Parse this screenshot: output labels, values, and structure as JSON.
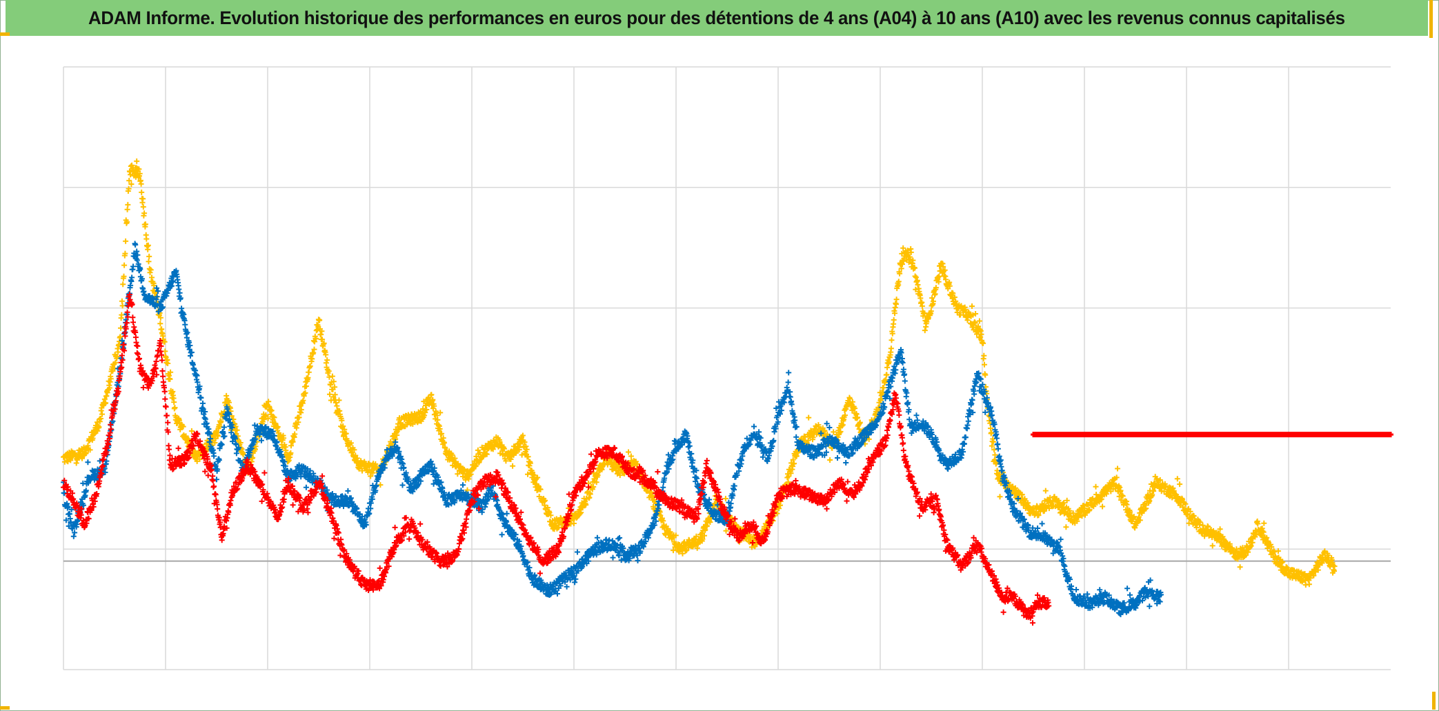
{
  "title": "ADAM Informe. Evolution historique des performances en euros pour des détentions de 4 ans (A04) à 10 ans (A10) avec les revenus connus capitalisés",
  "colors": {
    "title_background": "#84cc7a",
    "accent_corners": "#f0b400",
    "grid": "#d9d9d9",
    "zero_line": "#a6a6a6"
  },
  "chart_data": {
    "type": "scatter",
    "marker": "plus",
    "xlim": [
      0,
      13
    ],
    "ylim": [
      -0.9,
      4.1
    ],
    "x_gridlines": [
      1,
      2,
      3,
      4,
      5,
      6,
      7,
      8,
      9,
      10,
      11,
      12
    ],
    "y_gridlines": [
      0.1,
      2.1,
      3.1
    ],
    "zero_line": 0,
    "grid": true,
    "tick_labels_visible": false,
    "series": [
      {
        "color": "#ffc000",
        "points": [
          [
            0.0,
            0.85
          ],
          [
            0.2,
            0.9
          ],
          [
            0.35,
            1.15
          ],
          [
            0.55,
            1.8
          ],
          [
            0.65,
            3.25
          ],
          [
            0.75,
            3.2
          ],
          [
            0.85,
            2.4
          ],
          [
            0.95,
            2.0
          ],
          [
            1.1,
            1.2
          ],
          [
            1.3,
            0.85
          ],
          [
            1.5,
            1.05
          ],
          [
            1.6,
            1.35
          ],
          [
            1.8,
            0.75
          ],
          [
            2.0,
            1.3
          ],
          [
            2.2,
            0.85
          ],
          [
            2.35,
            1.35
          ],
          [
            2.5,
            2.0
          ],
          [
            2.6,
            1.55
          ],
          [
            2.75,
            1.05
          ],
          [
            2.9,
            0.8
          ],
          [
            3.1,
            0.75
          ],
          [
            3.3,
            1.15
          ],
          [
            3.5,
            1.2
          ],
          [
            3.6,
            1.35
          ],
          [
            3.75,
            0.9
          ],
          [
            3.95,
            0.7
          ],
          [
            4.1,
            0.9
          ],
          [
            4.25,
            1.0
          ],
          [
            4.35,
            0.85
          ],
          [
            4.5,
            1.0
          ],
          [
            4.6,
            0.7
          ],
          [
            4.8,
            0.3
          ],
          [
            5.0,
            0.35
          ],
          [
            5.15,
            0.55
          ],
          [
            5.3,
            0.85
          ],
          [
            5.45,
            0.75
          ],
          [
            5.6,
            0.8
          ],
          [
            5.75,
            0.55
          ],
          [
            5.9,
            0.25
          ],
          [
            6.05,
            0.1
          ],
          [
            6.25,
            0.2
          ],
          [
            6.4,
            0.5
          ],
          [
            6.6,
            0.25
          ],
          [
            6.8,
            0.15
          ],
          [
            7.0,
            0.45
          ],
          [
            7.2,
            0.95
          ],
          [
            7.4,
            1.1
          ],
          [
            7.55,
            0.95
          ],
          [
            7.7,
            1.35
          ],
          [
            7.85,
            1.0
          ],
          [
            8.0,
            1.3
          ],
          [
            8.1,
            1.75
          ],
          [
            8.2,
            2.5
          ],
          [
            8.3,
            2.55
          ],
          [
            8.45,
            1.95
          ],
          [
            8.6,
            2.45
          ],
          [
            8.75,
            2.1
          ],
          [
            8.85,
            2.05
          ],
          [
            9.0,
            1.85
          ],
          [
            9.05,
            1.3
          ],
          [
            9.15,
            0.7
          ],
          [
            9.3,
            0.6
          ],
          [
            9.5,
            0.4
          ],
          [
            9.7,
            0.5
          ],
          [
            9.9,
            0.35
          ],
          [
            10.1,
            0.5
          ],
          [
            10.3,
            0.65
          ],
          [
            10.5,
            0.3
          ],
          [
            10.7,
            0.65
          ],
          [
            10.9,
            0.55
          ],
          [
            11.1,
            0.3
          ],
          [
            11.3,
            0.2
          ],
          [
            11.5,
            0.05
          ],
          [
            11.6,
            0.1
          ],
          [
            11.7,
            0.3
          ],
          [
            11.85,
            0.05
          ],
          [
            12.0,
            -0.1
          ],
          [
            12.2,
            -0.15
          ],
          [
            12.35,
            0.05
          ],
          [
            12.45,
            -0.05
          ]
        ]
      },
      {
        "color": "#0070c0",
        "points": [
          [
            0.0,
            0.55
          ],
          [
            0.1,
            0.25
          ],
          [
            0.25,
            0.7
          ],
          [
            0.4,
            0.75
          ],
          [
            0.55,
            1.55
          ],
          [
            0.7,
            2.6
          ],
          [
            0.8,
            2.2
          ],
          [
            0.95,
            2.1
          ],
          [
            1.0,
            2.2
          ],
          [
            1.1,
            2.4
          ],
          [
            1.2,
            1.9
          ],
          [
            1.35,
            1.35
          ],
          [
            1.5,
            0.75
          ],
          [
            1.6,
            1.25
          ],
          [
            1.75,
            0.75
          ],
          [
            1.9,
            1.1
          ],
          [
            2.05,
            1.05
          ],
          [
            2.2,
            0.7
          ],
          [
            2.35,
            0.75
          ],
          [
            2.5,
            0.65
          ],
          [
            2.65,
            0.5
          ],
          [
            2.8,
            0.5
          ],
          [
            2.95,
            0.3
          ],
          [
            3.1,
            0.75
          ],
          [
            3.25,
            0.95
          ],
          [
            3.4,
            0.6
          ],
          [
            3.6,
            0.8
          ],
          [
            3.75,
            0.5
          ],
          [
            3.9,
            0.55
          ],
          [
            4.1,
            0.45
          ],
          [
            4.2,
            0.6
          ],
          [
            4.3,
            0.35
          ],
          [
            4.45,
            0.15
          ],
          [
            4.6,
            -0.15
          ],
          [
            4.75,
            -0.25
          ],
          [
            4.9,
            -0.15
          ],
          [
            5.05,
            -0.05
          ],
          [
            5.2,
            0.1
          ],
          [
            5.35,
            0.15
          ],
          [
            5.5,
            0.05
          ],
          [
            5.65,
            0.1
          ],
          [
            5.8,
            0.35
          ],
          [
            5.9,
            0.75
          ],
          [
            6.0,
            0.95
          ],
          [
            6.1,
            1.05
          ],
          [
            6.2,
            0.65
          ],
          [
            6.35,
            0.4
          ],
          [
            6.5,
            0.35
          ],
          [
            6.6,
            0.75
          ],
          [
            6.7,
            1.0
          ],
          [
            6.8,
            1.05
          ],
          [
            6.9,
            0.85
          ],
          [
            7.0,
            1.2
          ],
          [
            7.1,
            1.45
          ],
          [
            7.2,
            0.95
          ],
          [
            7.35,
            0.9
          ],
          [
            7.5,
            1.0
          ],
          [
            7.7,
            0.9
          ],
          [
            7.85,
            1.05
          ],
          [
            8.0,
            1.2
          ],
          [
            8.2,
            1.75
          ],
          [
            8.3,
            1.1
          ],
          [
            8.4,
            1.15
          ],
          [
            8.5,
            1.05
          ],
          [
            8.65,
            0.8
          ],
          [
            8.8,
            0.9
          ],
          [
            8.95,
            1.55
          ],
          [
            9.1,
            1.2
          ],
          [
            9.2,
            0.7
          ],
          [
            9.3,
            0.45
          ],
          [
            9.45,
            0.25
          ],
          [
            9.6,
            0.2
          ],
          [
            9.75,
            0.1
          ],
          [
            9.9,
            -0.3
          ],
          [
            10.05,
            -0.35
          ],
          [
            10.2,
            -0.3
          ],
          [
            10.35,
            -0.4
          ],
          [
            10.5,
            -0.35
          ],
          [
            10.6,
            -0.25
          ],
          [
            10.75,
            -0.3
          ]
        ]
      },
      {
        "color": "#ff0000",
        "points": [
          [
            0.0,
            0.65
          ],
          [
            0.1,
            0.5
          ],
          [
            0.2,
            0.3
          ],
          [
            0.3,
            0.5
          ],
          [
            0.45,
            1.05
          ],
          [
            0.55,
            1.5
          ],
          [
            0.65,
            2.2
          ],
          [
            0.75,
            1.6
          ],
          [
            0.85,
            1.45
          ],
          [
            0.95,
            1.8
          ],
          [
            1.05,
            0.8
          ],
          [
            1.2,
            0.85
          ],
          [
            1.3,
            1.05
          ],
          [
            1.45,
            0.75
          ],
          [
            1.55,
            0.2
          ],
          [
            1.65,
            0.55
          ],
          [
            1.8,
            0.8
          ],
          [
            1.95,
            0.6
          ],
          [
            2.1,
            0.35
          ],
          [
            2.2,
            0.65
          ],
          [
            2.35,
            0.45
          ],
          [
            2.5,
            0.65
          ],
          [
            2.6,
            0.45
          ],
          [
            2.75,
            0.05
          ],
          [
            2.95,
            -0.2
          ],
          [
            3.1,
            -0.2
          ],
          [
            3.25,
            0.15
          ],
          [
            3.4,
            0.3
          ],
          [
            3.55,
            0.1
          ],
          [
            3.7,
            0.0
          ],
          [
            3.85,
            0.05
          ],
          [
            4.0,
            0.5
          ],
          [
            4.1,
            0.65
          ],
          [
            4.25,
            0.7
          ],
          [
            4.4,
            0.45
          ],
          [
            4.55,
            0.2
          ],
          [
            4.7,
            0.0
          ],
          [
            4.85,
            0.1
          ],
          [
            5.0,
            0.55
          ],
          [
            5.15,
            0.75
          ],
          [
            5.25,
            0.9
          ],
          [
            5.4,
            0.9
          ],
          [
            5.55,
            0.75
          ],
          [
            5.75,
            0.65
          ],
          [
            5.9,
            0.5
          ],
          [
            6.05,
            0.45
          ],
          [
            6.2,
            0.35
          ],
          [
            6.3,
            0.8
          ],
          [
            6.45,
            0.45
          ],
          [
            6.6,
            0.2
          ],
          [
            6.75,
            0.3
          ],
          [
            6.85,
            0.15
          ],
          [
            7.0,
            0.55
          ],
          [
            7.15,
            0.6
          ],
          [
            7.3,
            0.55
          ],
          [
            7.45,
            0.5
          ],
          [
            7.6,
            0.65
          ],
          [
            7.75,
            0.55
          ],
          [
            7.9,
            0.8
          ],
          [
            8.05,
            1.0
          ],
          [
            8.15,
            1.4
          ],
          [
            8.25,
            0.8
          ],
          [
            8.4,
            0.45
          ],
          [
            8.55,
            0.5
          ],
          [
            8.65,
            0.15
          ],
          [
            8.8,
            -0.05
          ],
          [
            8.95,
            0.15
          ],
          [
            9.05,
            -0.05
          ],
          [
            9.2,
            -0.3
          ],
          [
            9.3,
            -0.3
          ],
          [
            9.45,
            -0.45
          ],
          [
            9.55,
            -0.35
          ],
          [
            9.65,
            -0.35
          ]
        ]
      },
      {
        "color": "#ff0000",
        "points": [
          [
            9.5,
            1.05
          ],
          [
            13.0,
            1.05
          ]
        ]
      }
    ]
  }
}
